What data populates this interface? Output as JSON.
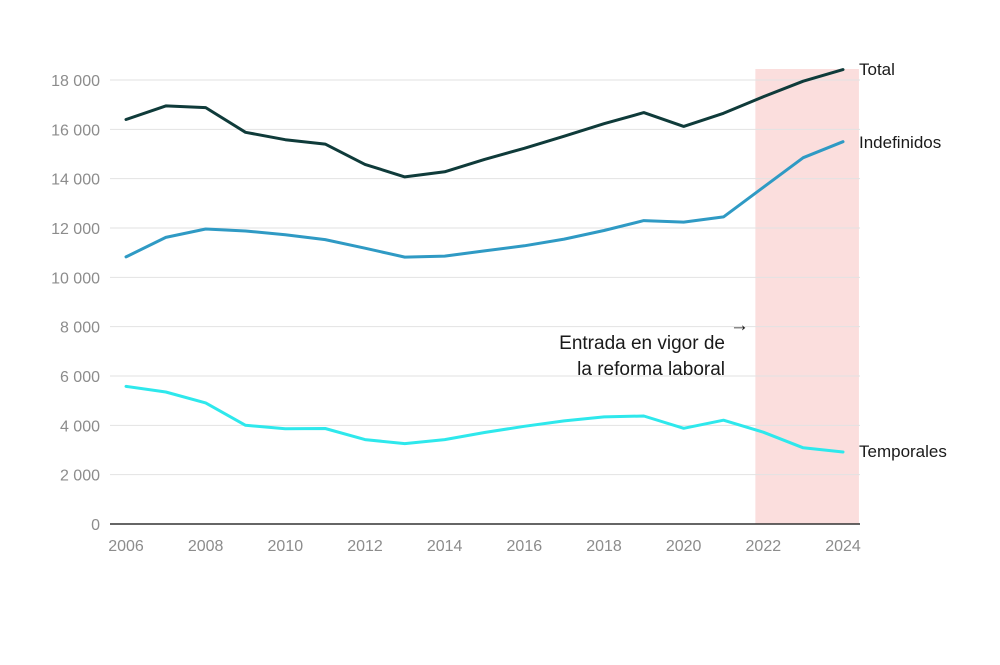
{
  "chart_data": {
    "type": "line",
    "title": "",
    "xlabel": "",
    "ylabel": "",
    "x": [
      2006,
      2007,
      2008,
      2009,
      2010,
      2011,
      2012,
      2013,
      2014,
      2015,
      2016,
      2017,
      2018,
      2019,
      2020,
      2021,
      2022,
      2023,
      2024
    ],
    "ylim": [
      0,
      18000
    ],
    "xlim": [
      2006,
      2024
    ],
    "y_ticks": [
      0,
      2000,
      4000,
      6000,
      8000,
      10000,
      12000,
      14000,
      16000,
      18000
    ],
    "y_tick_labels": [
      "0",
      "2 000",
      "4 000",
      "6 000",
      "8 000",
      "10 000",
      "12 000",
      "14 000",
      "16 000",
      "18 000"
    ],
    "x_ticks": [
      2006,
      2008,
      2010,
      2012,
      2014,
      2016,
      2018,
      2020,
      2022,
      2024
    ],
    "x_tick_labels": [
      "2006",
      "2008",
      "2010",
      "2012",
      "2014",
      "2016",
      "2018",
      "2020",
      "2022",
      "2024"
    ],
    "grid": true,
    "series": [
      {
        "name": "Total",
        "color": "#0f3b3a",
        "values": [
          16400,
          16950,
          16880,
          15880,
          15580,
          15400,
          14580,
          14070,
          14280,
          14780,
          15230,
          15720,
          16230,
          16680,
          16120,
          16650,
          17320,
          17950,
          18420
        ]
      },
      {
        "name": "Indefinidos",
        "color": "#2f9ac4",
        "values": [
          10830,
          11620,
          11960,
          11880,
          11730,
          11530,
          11180,
          10820,
          10860,
          11070,
          11280,
          11550,
          11900,
          12300,
          12240,
          12450,
          13650,
          14850,
          15500
        ]
      },
      {
        "name": "Temporales",
        "color": "#2ee8ec",
        "values": [
          5580,
          5350,
          4910,
          4000,
          3860,
          3870,
          3420,
          3260,
          3420,
          3710,
          3960,
          4180,
          4340,
          4380,
          3880,
          4210,
          3720,
          3090,
          2920
        ]
      }
    ],
    "highlight": {
      "x_start": 2021.8,
      "x_end": 2024.4,
      "color": "#fbdedd"
    },
    "annotation": {
      "lines": [
        "Entrada en vigor de",
        "la reforma laboral"
      ],
      "arrow": "→"
    }
  }
}
